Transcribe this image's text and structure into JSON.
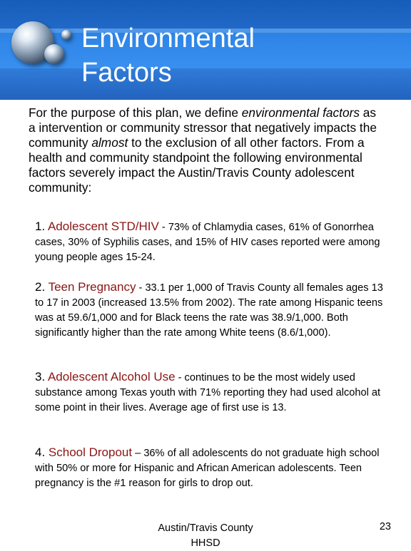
{
  "slide": {
    "title_line1": "Environmental",
    "title_line2": "Factors",
    "intro_a": "For the purpose of this plan, we define ",
    "intro_em1": "environmental factors",
    "intro_b": " as a intervention or community stressor that negatively impacts the community ",
    "intro_em2": "almost",
    "intro_c": " to the exclusion of all other factors.  From a health and community standpoint the following environmental factors severely impact the Austin/Travis County adolescent community:",
    "items": [
      {
        "num": "1. ",
        "heading": "Adolescent STD/HIV",
        "body": " - 73% of Chlamydia cases, 61% of Gonorrhea cases, 30% of Syphilis cases, and 15% of HIV cases reported were among young people ages 15-24."
      },
      {
        "num": "2. ",
        "heading": "Teen Pregnancy",
        "body": " - 33.1 per 1,000 of Travis County all females ages 13 to 17 in 2003 (increased 13.5% from 2002). The rate among Hispanic teens was at 59.6/1,000 and for Black teens the rate was 38.9/1,000. Both significantly higher than the rate among White teens (8.6/1,000)."
      },
      {
        "num": "3. ",
        "heading": "Adolescent Alcohol Use",
        "body": " - continues to be the most widely used substance among Texas youth with 71% reporting they had used alcohol at some point in their lives. Average age of first use is 13."
      },
      {
        "num": "4. ",
        "heading": "School Dropout",
        "body": " – 36% of all adolescents do not graduate high school with 50% or more for Hispanic and African American adolescents. Teen pregnancy is the #1 reason for girls to drop out."
      }
    ],
    "footer_line1": "Austin/Travis County",
    "footer_line2": "HHSD",
    "page_number": "23"
  }
}
